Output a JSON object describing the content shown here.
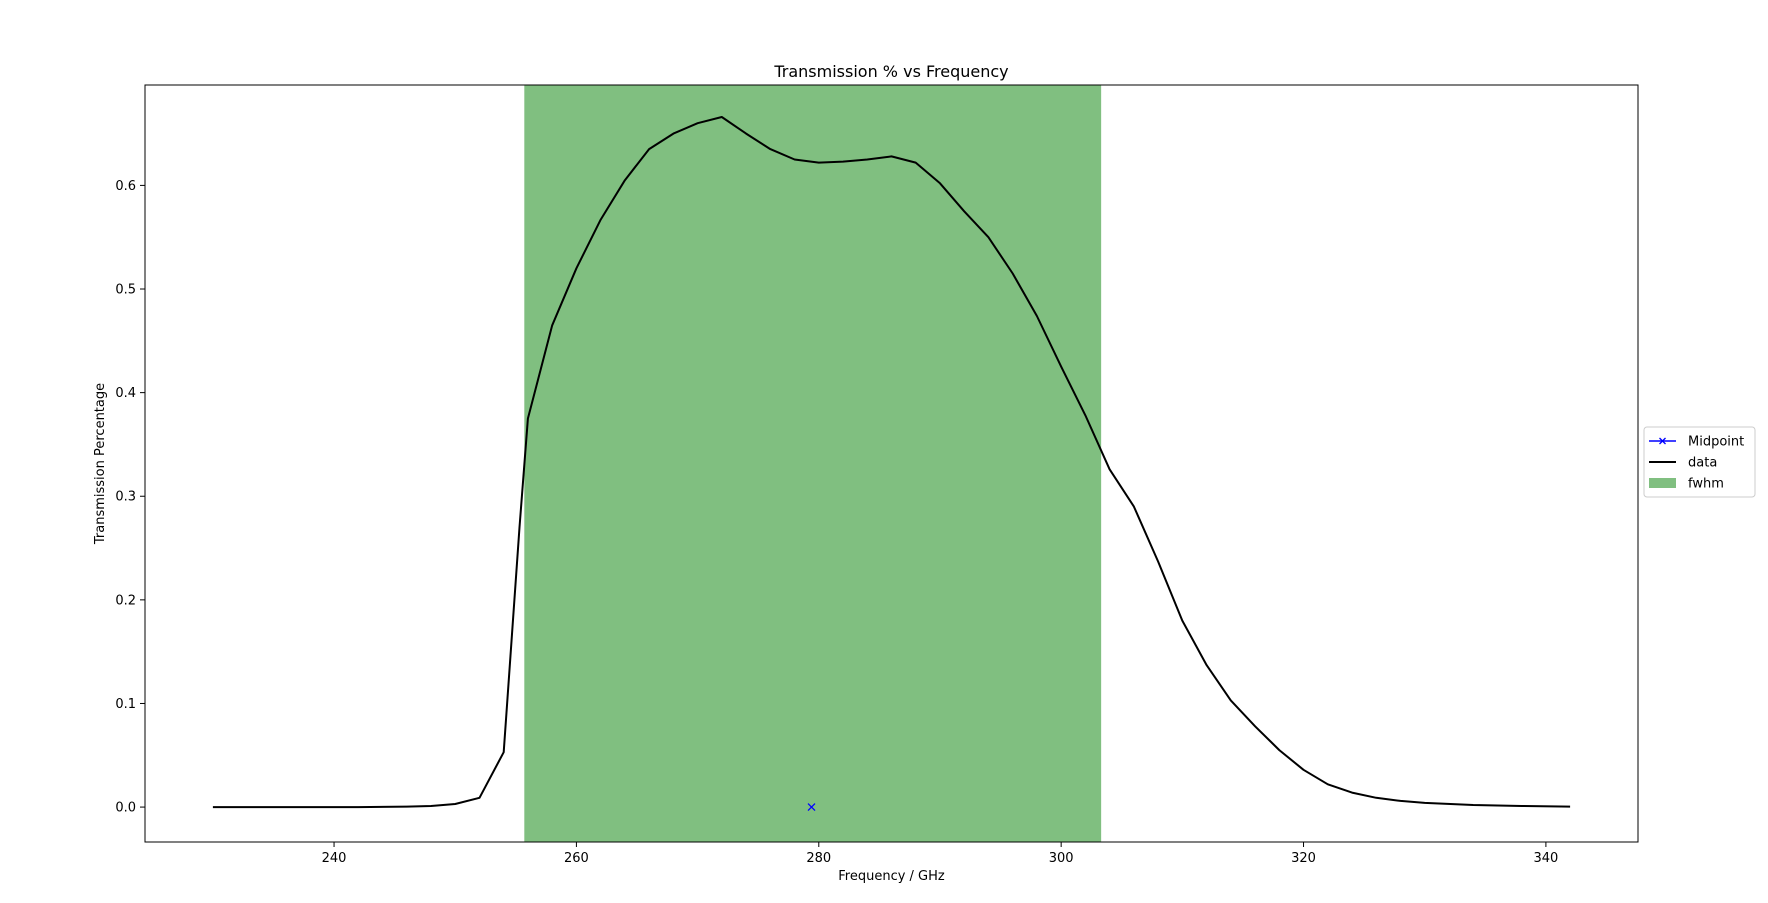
{
  "chart_data": {
    "type": "line",
    "title": "Transmission % vs Frequency",
    "xlabel": "Frequency / GHz",
    "ylabel": "Transmission Percentage",
    "xlim": [
      224.4,
      347.6
    ],
    "ylim": [
      -0.0337,
      0.6969
    ],
    "xticks": [
      240,
      260,
      280,
      300,
      320,
      340
    ],
    "yticks": [
      0.0,
      0.1,
      0.2,
      0.3,
      0.4,
      0.5,
      0.6
    ],
    "grid": false,
    "legend_position": "center-right-outside",
    "legend": [
      "Midpoint",
      "data",
      "fwhm"
    ],
    "colors": {
      "data": "#000000",
      "fwhm": "#80bf80",
      "midpoint": "#0000ff"
    },
    "fwhm": {
      "x_start": 255.7,
      "x_end": 303.3
    },
    "midpoint": {
      "x": 279.4,
      "y": 0.0
    },
    "series": [
      {
        "name": "data",
        "x": [
          230.0,
          234.0,
          238.0,
          242.0,
          246.0,
          248.0,
          250.0,
          252.0,
          254.0,
          255.3,
          256.0,
          258.0,
          260.0,
          262.0,
          264.0,
          266.0,
          268.0,
          270.0,
          272.0,
          274.0,
          276.0,
          278.0,
          280.0,
          282.0,
          284.0,
          286.0,
          288.0,
          290.0,
          292.0,
          294.0,
          296.0,
          298.0,
          300.0,
          302.0,
          304.0,
          306.0,
          308.0,
          310.0,
          312.0,
          314.0,
          316.0,
          318.0,
          320.0,
          322.0,
          324.0,
          326.0,
          328.0,
          330.0,
          334.0,
          338.0,
          342.0
        ],
        "y": [
          0.0,
          0.0,
          0.0,
          0.0,
          0.0005,
          0.001,
          0.003,
          0.009,
          0.053,
          0.27,
          0.375,
          0.465,
          0.52,
          0.567,
          0.605,
          0.635,
          0.65,
          0.66,
          0.666,
          0.65,
          0.635,
          0.625,
          0.622,
          0.623,
          0.625,
          0.628,
          0.622,
          0.602,
          0.575,
          0.55,
          0.515,
          0.474,
          0.425,
          0.378,
          0.326,
          0.29,
          0.237,
          0.18,
          0.137,
          0.103,
          0.078,
          0.055,
          0.036,
          0.022,
          0.014,
          0.009,
          0.006,
          0.004,
          0.002,
          0.001,
          0.0005
        ]
      }
    ]
  }
}
